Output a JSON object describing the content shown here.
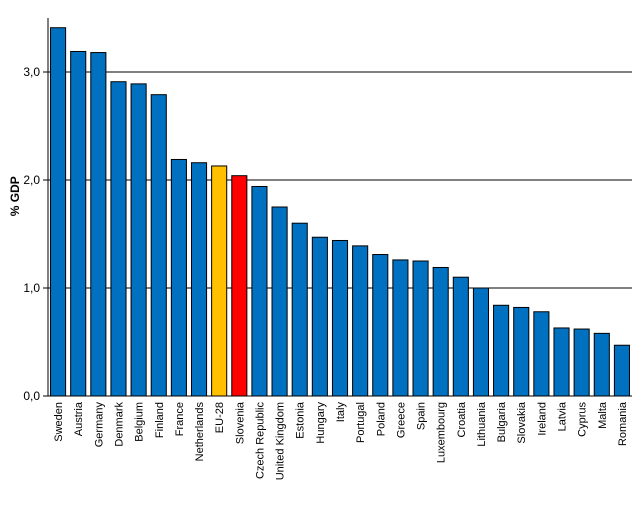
{
  "chart_data": {
    "type": "bar",
    "title": "",
    "xlabel": "",
    "ylabel": "% GDP",
    "ylim": [
      0,
      3.5
    ],
    "yticks": [
      0,
      1,
      2,
      3
    ],
    "ytick_labels": [
      "0,0",
      "1,0",
      "2,0",
      "3,0"
    ],
    "grid": "horizontal",
    "legend": "none",
    "colors": {
      "default": "#0070C0",
      "highlight_eu": "#FFC000",
      "highlight_slovenia": "#FF0000",
      "bar_edge": "#000000",
      "gridline": "#000000"
    },
    "categories": [
      "Sweden",
      "Austria",
      "Germany",
      "Denmark",
      "Belgium",
      "Finland",
      "France",
      "Netherlands",
      "EU-28",
      "Slovenia",
      "Czech Republic",
      "United Kingdom",
      "Estonia",
      "Hungary",
      "Italy",
      "Portugal",
      "Poland",
      "Greece",
      "Spain",
      "Luxembourg",
      "Croatia",
      "Lithuania",
      "Bulgaria",
      "Slovakia",
      "Ireland",
      "Latvia",
      "Cyprus",
      "Malta",
      "Romania"
    ],
    "values": [
      3.41,
      3.19,
      3.18,
      2.91,
      2.89,
      2.79,
      2.19,
      2.16,
      2.13,
      2.04,
      1.94,
      1.75,
      1.6,
      1.47,
      1.44,
      1.39,
      1.31,
      1.26,
      1.25,
      1.19,
      1.1,
      1.0,
      0.84,
      0.82,
      0.78,
      0.63,
      0.62,
      0.58,
      0.47
    ],
    "bar_colors": [
      "default",
      "default",
      "default",
      "default",
      "default",
      "default",
      "default",
      "default",
      "highlight_eu",
      "highlight_slovenia",
      "default",
      "default",
      "default",
      "default",
      "default",
      "default",
      "default",
      "default",
      "default",
      "default",
      "default",
      "default",
      "default",
      "default",
      "default",
      "default",
      "default",
      "default",
      "default"
    ]
  }
}
